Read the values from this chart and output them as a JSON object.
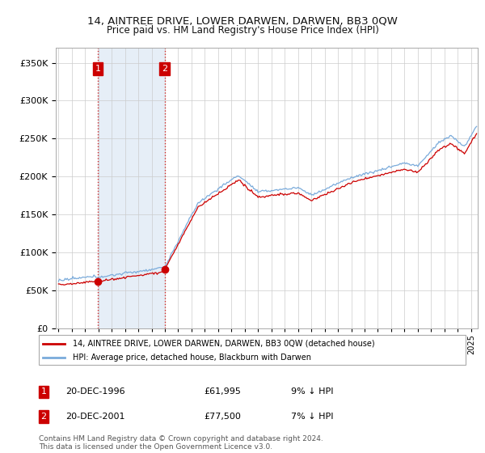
{
  "title": "14, AINTREE DRIVE, LOWER DARWEN, DARWEN, BB3 0QW",
  "subtitle": "Price paid vs. HM Land Registry's House Price Index (HPI)",
  "legend_line1": "14, AINTREE DRIVE, LOWER DARWEN, DARWEN, BB3 0QW (detached house)",
  "legend_line2": "HPI: Average price, detached house, Blackburn with Darwen",
  "transaction1_label": "1",
  "transaction1_date": "20-DEC-1996",
  "transaction1_price": "£61,995",
  "transaction1_hpi": "9% ↓ HPI",
  "transaction1_year": 1996.97,
  "transaction1_value": 61995,
  "transaction2_label": "2",
  "transaction2_date": "20-DEC-2001",
  "transaction2_price": "£77,500",
  "transaction2_hpi": "7% ↓ HPI",
  "transaction2_year": 2001.97,
  "transaction2_value": 77500,
  "footer": "Contains HM Land Registry data © Crown copyright and database right 2024.\nThis data is licensed under the Open Government Licence v3.0.",
  "ylim": [
    0,
    370000
  ],
  "xlim_start": 1993.8,
  "xlim_end": 2025.5,
  "hpi_color": "#7aabdb",
  "price_color": "#cc0000",
  "shaded_color": "#dce8f5"
}
